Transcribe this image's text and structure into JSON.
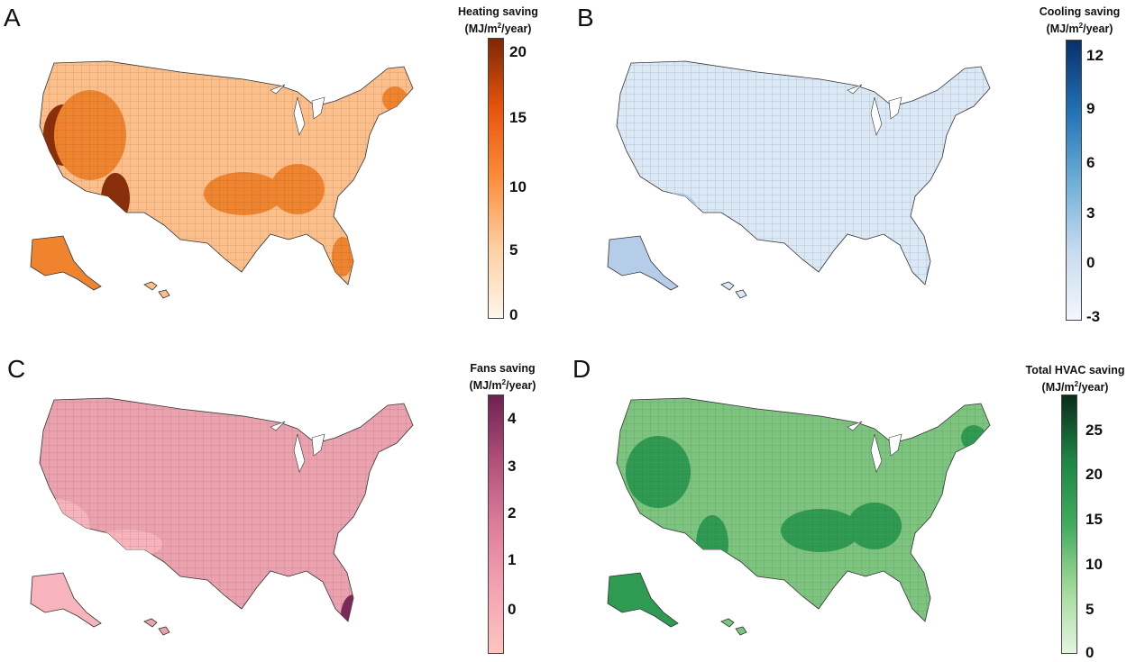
{
  "panels": [
    {
      "letter": "A",
      "legend_title": "Heating saving",
      "legend_unit_prefix": "(MJ/m",
      "legend_unit_exp": "2",
      "legend_unit_suffix": "/year)",
      "ticks": [
        "20",
        "15",
        "10",
        "5",
        "0"
      ],
      "gradient": [
        "#fff5eb",
        "#fdd0a2",
        "#fd8d3c",
        "#e6550d",
        "#7f2704"
      ],
      "base_fill": "#fdbf8a",
      "hotspot_fill": "#8a2f0a",
      "mid_fill": "#f0842e",
      "hotspot_value": "high in western and southeastern regions"
    },
    {
      "letter": "B",
      "legend_title": "Cooling saving",
      "legend_unit_prefix": "(MJ/m",
      "legend_unit_exp": "2",
      "legend_unit_suffix": "/year)",
      "ticks": [
        "12",
        "9",
        "6",
        "3",
        "0",
        "-3"
      ],
      "gradient": [
        "#f2f7fd",
        "#c6dbef",
        "#6baed6",
        "#2171b5",
        "#08306b"
      ],
      "base_fill": "#dbe8f6",
      "hotspot_fill": "#1b5499",
      "mid_fill": "#b5cde8"
    },
    {
      "letter": "C",
      "legend_title": "Fans saving",
      "legend_unit_prefix": "(MJ/m",
      "legend_unit_exp": "2",
      "legend_unit_suffix": "/year)",
      "ticks": [
        "4",
        "3",
        "2",
        "1",
        "0"
      ],
      "gradient": [
        "#fcc5c0",
        "#f4a3b2",
        "#dd7d99",
        "#b04f7a",
        "#6e2150"
      ],
      "base_fill": "#eba2ae",
      "hotspot_fill": "#7a2b57",
      "mid_fill": "#f7b4bc"
    },
    {
      "letter": "D",
      "legend_title": "Total HVAC saving",
      "legend_unit_prefix": "(MJ/m",
      "legend_unit_exp": "2",
      "legend_unit_suffix": "/year)",
      "ticks": [
        "25",
        "20",
        "15",
        "10",
        "5",
        "0"
      ],
      "gradient": [
        "#e5f5e0",
        "#a1d99b",
        "#41ab5d",
        "#1d8544",
        "#0b2d1a"
      ],
      "base_fill": "#7dc47f",
      "hotspot_fill": "#1c4a30",
      "mid_fill": "#2f9a52"
    }
  ]
}
